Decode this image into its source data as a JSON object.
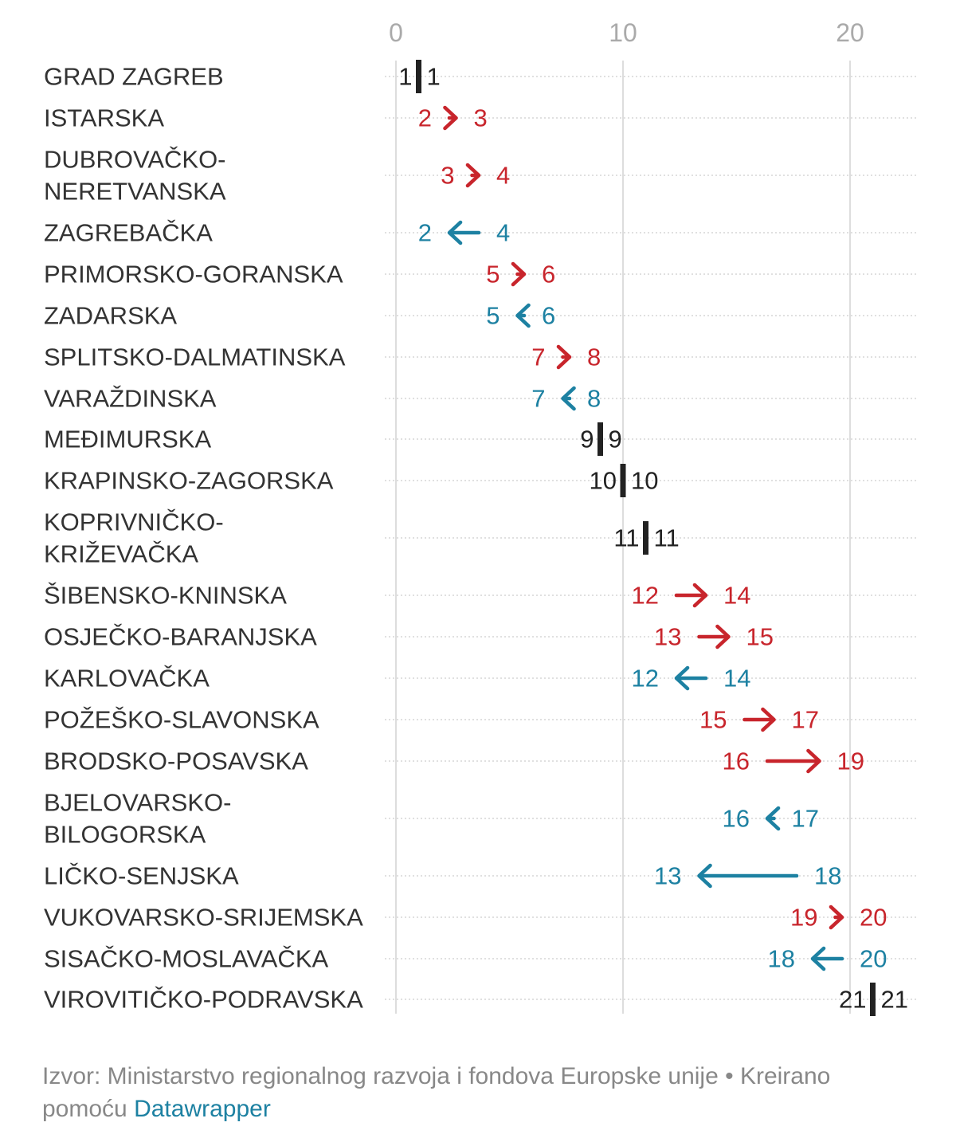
{
  "chart_data": {
    "type": "arrow",
    "x_ticks": [
      0,
      10,
      20
    ],
    "xlim": [
      0,
      22
    ],
    "grid": true,
    "colors": {
      "increase": "#c8252c",
      "decrease": "#1d81a2",
      "unchanged": "#222222",
      "label": "#333333",
      "grid": "#dddddd",
      "tick": "#aaaaaa"
    },
    "rows": [
      {
        "label": "GRAD ZAGREB",
        "from": 1,
        "to": 1
      },
      {
        "label": "ISTARSKA",
        "from": 2,
        "to": 3
      },
      {
        "label": "DUBROVAČKO-\nNERETVANSKA",
        "from": 3,
        "to": 4
      },
      {
        "label": "ZAGREBAČKA",
        "from": 4,
        "to": 2
      },
      {
        "label": "PRIMORSKO-GORANSKA",
        "from": 5,
        "to": 6
      },
      {
        "label": "ZADARSKA",
        "from": 6,
        "to": 5
      },
      {
        "label": "SPLITSKO-DALMATINSKA",
        "from": 7,
        "to": 8
      },
      {
        "label": "VARAŽDINSKA",
        "from": 8,
        "to": 7
      },
      {
        "label": "MEĐIMURSKA",
        "from": 9,
        "to": 9
      },
      {
        "label": "KRAPINSKO-ZAGORSKA",
        "from": 10,
        "to": 10
      },
      {
        "label": "KOPRIVNIČKO-\nKRIŽEVAČKA",
        "from": 11,
        "to": 11
      },
      {
        "label": "ŠIBENSKO-KNINSKA",
        "from": 12,
        "to": 14
      },
      {
        "label": "OSJEČKO-BARANJSKA",
        "from": 13,
        "to": 15
      },
      {
        "label": "KARLOVAČKA",
        "from": 14,
        "to": 12
      },
      {
        "label": "POŽEŠKO-SLAVONSKA",
        "from": 15,
        "to": 17
      },
      {
        "label": "BRODSKO-POSAVSKA",
        "from": 16,
        "to": 19
      },
      {
        "label": "BJELOVARSKO-\nBILOGORSKA",
        "from": 17,
        "to": 16
      },
      {
        "label": "LIČKO-SENJSKA",
        "from": 18,
        "to": 13
      },
      {
        "label": "VUKOVARSKO-SRIJEMSKA",
        "from": 19,
        "to": 20
      },
      {
        "label": "SISAČKO-MOSLAVAČKA",
        "from": 20,
        "to": 18
      },
      {
        "label": "VIROVITIČKO-PODRAVSKA",
        "from": 21,
        "to": 21
      }
    ]
  },
  "footer": {
    "source_text": "Izvor: Ministarstvo regionalnog razvoja i fondova Europske unije • Kreirano pomoću ",
    "link_text": "Datawrapper"
  }
}
